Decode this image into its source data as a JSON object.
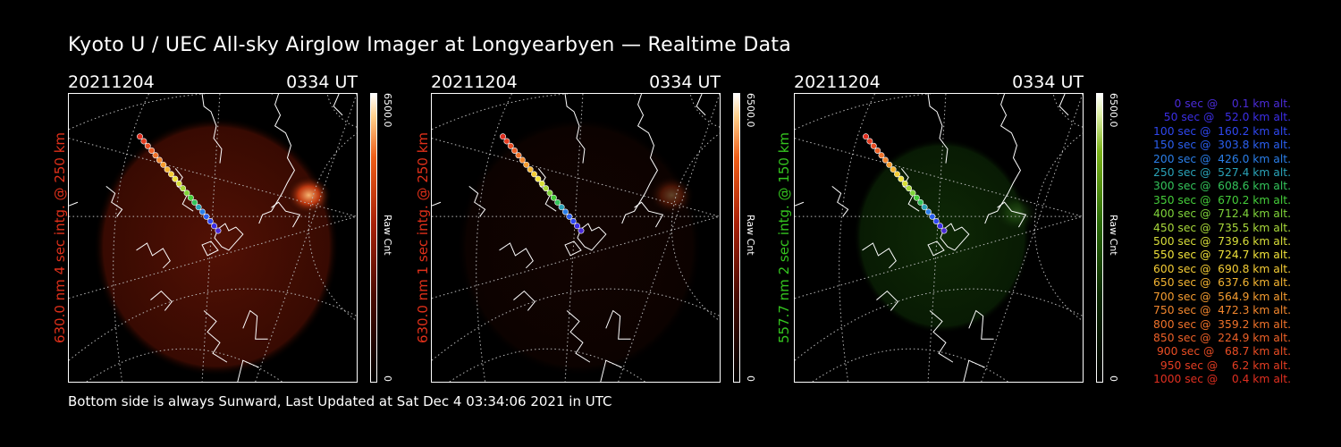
{
  "title": "Kyoto U / UEC All-sky Airglow Imager at Longyearbyen — Realtime Data",
  "footer": "Bottom side is always Sunward, Last Updated at Sat Dec  4 03:34:06 2021 in UTC",
  "panels": [
    {
      "date": "20211204",
      "time": "0334 UT",
      "side_label": "630.0 nm 4 sec intg. @ 250 km",
      "label_color": "#e0301a",
      "cbar_max": "6500.0",
      "cbar_min": "0",
      "cbar_unit": "Raw Cnt",
      "colormap": "red",
      "airglow_intensity": 0.55,
      "auroral_spot_intensity": 0.95
    },
    {
      "date": "20211204",
      "time": "0334 UT",
      "side_label": "630.0 nm 1 sec intg. @ 250 km",
      "label_color": "#e0301a",
      "cbar_max": "6500.0",
      "cbar_min": "0",
      "cbar_unit": "Raw Cnt",
      "colormap": "red",
      "airglow_intensity": 0.12,
      "auroral_spot_intensity": 0.35
    },
    {
      "date": "20211204",
      "time": "0334 UT",
      "side_label": "557.7 nm 2 sec intg. @ 150 km",
      "label_color": "#34c51f",
      "cbar_max": "6500.0",
      "cbar_min": "0",
      "cbar_unit": "Raw Cnt",
      "colormap": "green",
      "airglow_intensity": 0.45,
      "auroral_spot_intensity": 0.3
    }
  ],
  "trajectory_legend": [
    {
      "text": "0 sec @    0.1 km alt.",
      "color": "#4a2bd8"
    },
    {
      "text": "50 sec @   52.0 km alt.",
      "color": "#3b2ee6"
    },
    {
      "text": "100 sec @  160.2 km alt.",
      "color": "#2f47ef"
    },
    {
      "text": "150 sec @  303.8 km alt.",
      "color": "#2a5ff0"
    },
    {
      "text": "200 sec @  426.0 km alt.",
      "color": "#2a7ee8"
    },
    {
      "text": "250 sec @  527.4 km alt.",
      "color": "#2aa3b8"
    },
    {
      "text": "300 sec @  608.6 km alt.",
      "color": "#33c35a"
    },
    {
      "text": "350 sec @  670.2 km alt.",
      "color": "#45cd3a"
    },
    {
      "text": "400 sec @  712.4 km alt.",
      "color": "#7fd33a"
    },
    {
      "text": "450 sec @  735.5 km alt.",
      "color": "#a8d83a"
    },
    {
      "text": "500 sec @  739.6 km alt.",
      "color": "#d8de3a"
    },
    {
      "text": "550 sec @  724.7 km alt.",
      "color": "#f0e23a"
    },
    {
      "text": "600 sec @  690.8 km alt.",
      "color": "#f4cc35"
    },
    {
      "text": "650 sec @  637.6 km alt.",
      "color": "#f4b432"
    },
    {
      "text": "700 sec @  564.9 km alt.",
      "color": "#f49c30"
    },
    {
      "text": "750 sec @  472.3 km alt.",
      "color": "#f2862d"
    },
    {
      "text": "800 sec @  359.2 km alt.",
      "color": "#ef722a"
    },
    {
      "text": "850 sec @  224.9 km alt.",
      "color": "#ec6027"
    },
    {
      "text": "900 sec @   68.7 km alt.",
      "color": "#e84d24"
    },
    {
      "text": "950 sec @    6.2 km alt.",
      "color": "#e43d22"
    },
    {
      "text": "1000 sec @    0.4 km alt.",
      "color": "#e02f20"
    }
  ]
}
